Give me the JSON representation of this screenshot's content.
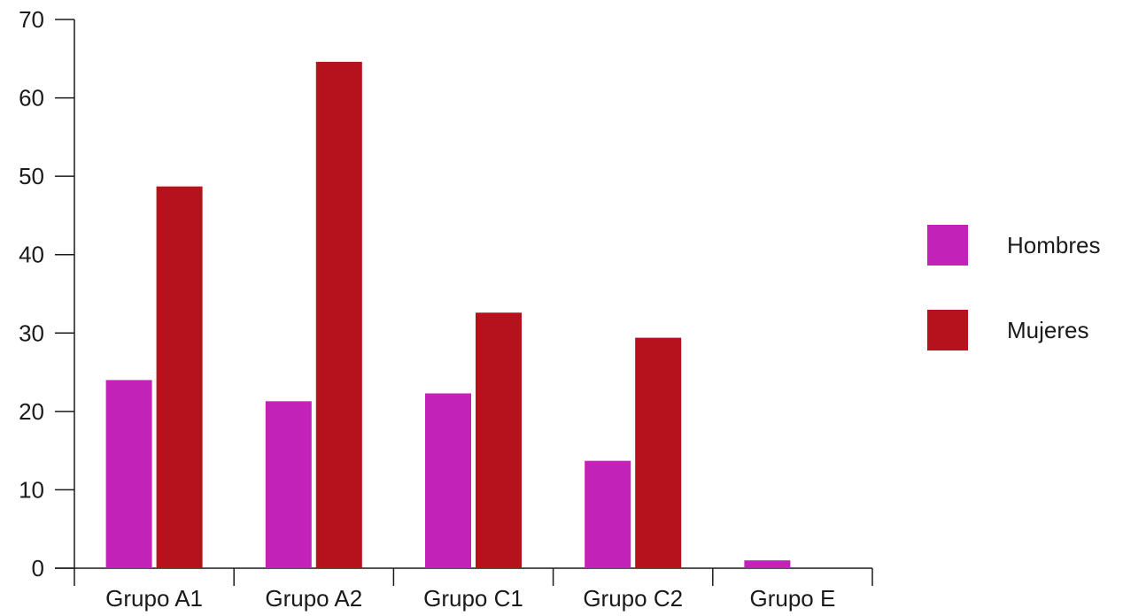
{
  "chart_data": {
    "type": "bar",
    "categories": [
      "Grupo A1",
      "Grupo A2",
      "Grupo C1",
      "Grupo C2",
      "Grupo E"
    ],
    "series": [
      {
        "name": "Hombres",
        "values": [
          24,
          21.3,
          22.3,
          13.7,
          1
        ],
        "color": "#c322b8"
      },
      {
        "name": "Mujeres",
        "values": [
          48.7,
          64.6,
          32.6,
          29.4,
          0
        ],
        "color": "#b5121b"
      }
    ],
    "ylim": [
      0,
      70
    ],
    "yticks": [
      0,
      10,
      20,
      30,
      40,
      50,
      60,
      70
    ],
    "title": "",
    "xlabel": "",
    "ylabel": "",
    "grid": false,
    "legend_position": "right"
  }
}
